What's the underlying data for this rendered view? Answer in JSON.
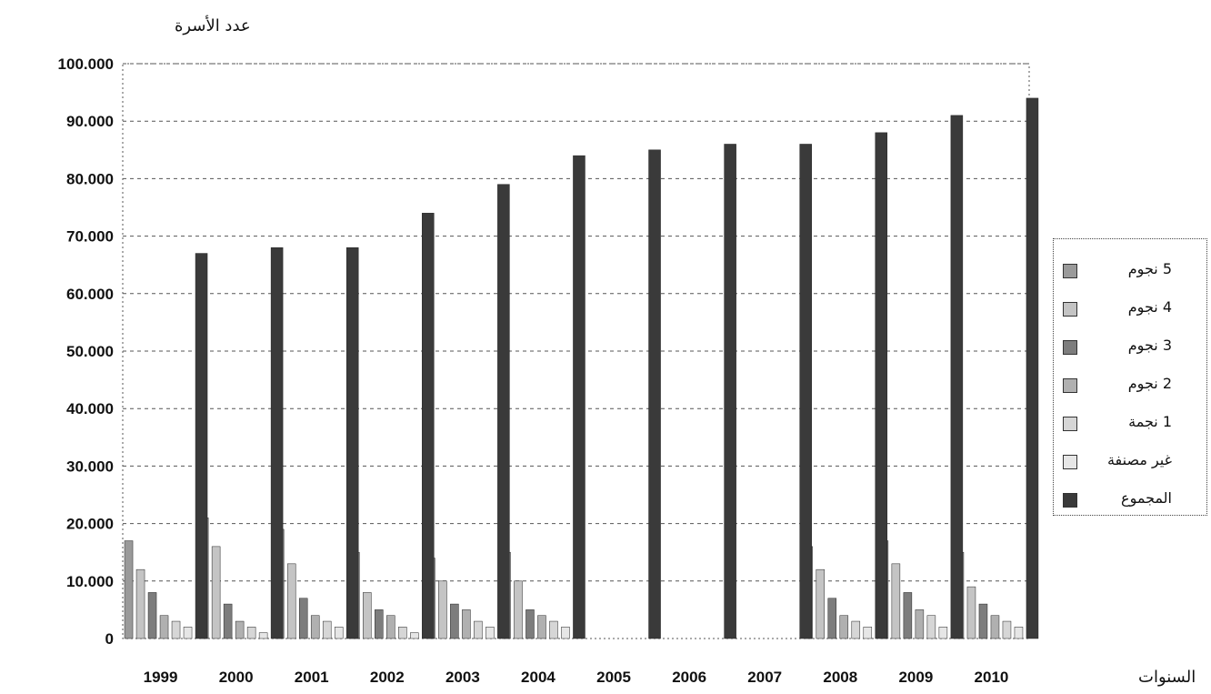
{
  "chart_data": {
    "type": "bar",
    "ylabel": "عدد الأسرة",
    "xlabel": "السنوات",
    "ylim": [
      0,
      100000
    ],
    "yticks": [
      0,
      10000,
      20000,
      30000,
      40000,
      50000,
      60000,
      70000,
      80000,
      90000,
      100000
    ],
    "ytick_labels": [
      "0",
      "10.000",
      "20.000",
      "30.000",
      "40.000",
      "50.000",
      "60.000",
      "70.000",
      "80.000",
      "90.000",
      "100.000"
    ],
    "categories": [
      "1999",
      "2000",
      "2001",
      "2002",
      "2003",
      "2004",
      "2005",
      "2006",
      "2007",
      "2008",
      "2009",
      "2010"
    ],
    "grid": true,
    "legend_position": "right",
    "series": [
      {
        "name": "5 نجوم",
        "color": "#9a9a9a",
        "values": [
          17000,
          21000,
          19000,
          15000,
          14000,
          15000,
          0,
          0,
          0,
          16000,
          17000,
          15000
        ]
      },
      {
        "name": "4 نجوم",
        "color": "#c4c4c4",
        "values": [
          12000,
          16000,
          13000,
          8000,
          10000,
          10000,
          0,
          0,
          0,
          12000,
          13000,
          9000
        ]
      },
      {
        "name": "3 نجوم",
        "color": "#7d7d7d",
        "values": [
          8000,
          6000,
          7000,
          5000,
          6000,
          5000,
          0,
          0,
          0,
          7000,
          8000,
          6000
        ]
      },
      {
        "name": "2 نجوم",
        "color": "#b0b0b0",
        "values": [
          4000,
          3000,
          4000,
          4000,
          5000,
          4000,
          0,
          0,
          0,
          4000,
          5000,
          4000
        ]
      },
      {
        "name": "1 نجمة",
        "color": "#d6d6d6",
        "values": [
          3000,
          2000,
          3000,
          2000,
          3000,
          3000,
          0,
          0,
          0,
          3000,
          4000,
          3000
        ]
      },
      {
        "name": "غير مصنفة",
        "color": "#e6e6e6",
        "values": [
          2000,
          1000,
          2000,
          1000,
          2000,
          2000,
          0,
          0,
          0,
          2000,
          2000,
          2000
        ]
      },
      {
        "name": "المجموع",
        "color": "#3a3a3a",
        "values": [
          67000,
          68000,
          68000,
          74000,
          79000,
          84000,
          85000,
          86000,
          86000,
          88000,
          91000,
          94000
        ]
      }
    ]
  }
}
